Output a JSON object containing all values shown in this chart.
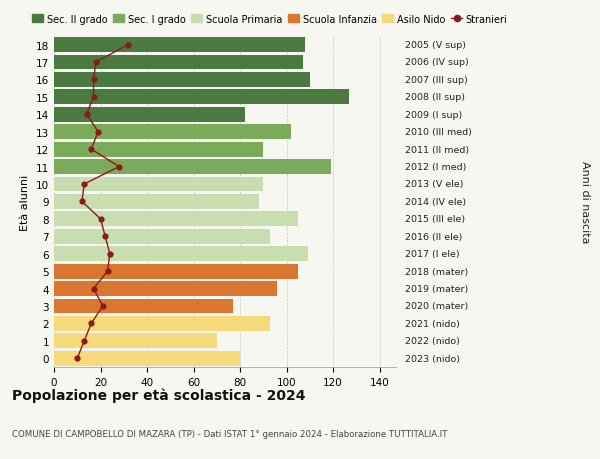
{
  "ages": [
    18,
    17,
    16,
    15,
    14,
    13,
    12,
    11,
    10,
    9,
    8,
    7,
    6,
    5,
    4,
    3,
    2,
    1,
    0
  ],
  "years_labels": [
    "2005 (V sup)",
    "2006 (IV sup)",
    "2007 (III sup)",
    "2008 (II sup)",
    "2009 (I sup)",
    "2010 (III med)",
    "2011 (II med)",
    "2012 (I med)",
    "2013 (V ele)",
    "2014 (IV ele)",
    "2015 (III ele)",
    "2016 (II ele)",
    "2017 (I ele)",
    "2018 (mater)",
    "2019 (mater)",
    "2020 (mater)",
    "2021 (nido)",
    "2022 (nido)",
    "2023 (nido)"
  ],
  "bar_values": [
    108,
    107,
    110,
    127,
    82,
    102,
    90,
    119,
    90,
    88,
    105,
    93,
    109,
    105,
    96,
    77,
    93,
    70,
    80
  ],
  "stranieri": [
    32,
    18,
    17,
    17,
    14,
    19,
    16,
    28,
    13,
    12,
    20,
    22,
    24,
    23,
    17,
    21,
    16,
    13,
    10
  ],
  "bar_colors": [
    "#4a7a40",
    "#4a7a40",
    "#4a7a40",
    "#4a7a40",
    "#4a7a40",
    "#7aaa5a",
    "#7aaa5a",
    "#7aaa5a",
    "#c8ddb0",
    "#c8ddb0",
    "#c8ddb0",
    "#c8ddb0",
    "#c8ddb0",
    "#d97630",
    "#d97630",
    "#d97630",
    "#f5d97a",
    "#f5d97a",
    "#f5d97a"
  ],
  "legend_labels": [
    "Sec. II grado",
    "Sec. I grado",
    "Scuola Primaria",
    "Scuola Infanzia",
    "Asilo Nido",
    "Stranieri"
  ],
  "legend_colors": [
    "#4a7a40",
    "#7aaa5a",
    "#c8ddb0",
    "#d97630",
    "#f5d97a",
    "#8b1a1a"
  ],
  "stranieri_color": "#8b1a1a",
  "stranieri_line_color": "#8b1a1a",
  "title": "Popolazione per età scolastica - 2024",
  "subtitle": "COMUNE DI CAMPOBELLO DI MAZARA (TP) - Dati ISTAT 1° gennaio 2024 - Elaborazione TUTTITALIA.IT",
  "ylabel": "Età alunni",
  "ylabel2": "Anni di nascita",
  "xlim": [
    0,
    147
  ],
  "xticks": [
    0,
    20,
    40,
    60,
    80,
    100,
    120,
    140
  ],
  "bg_color": "#f7f7f2"
}
